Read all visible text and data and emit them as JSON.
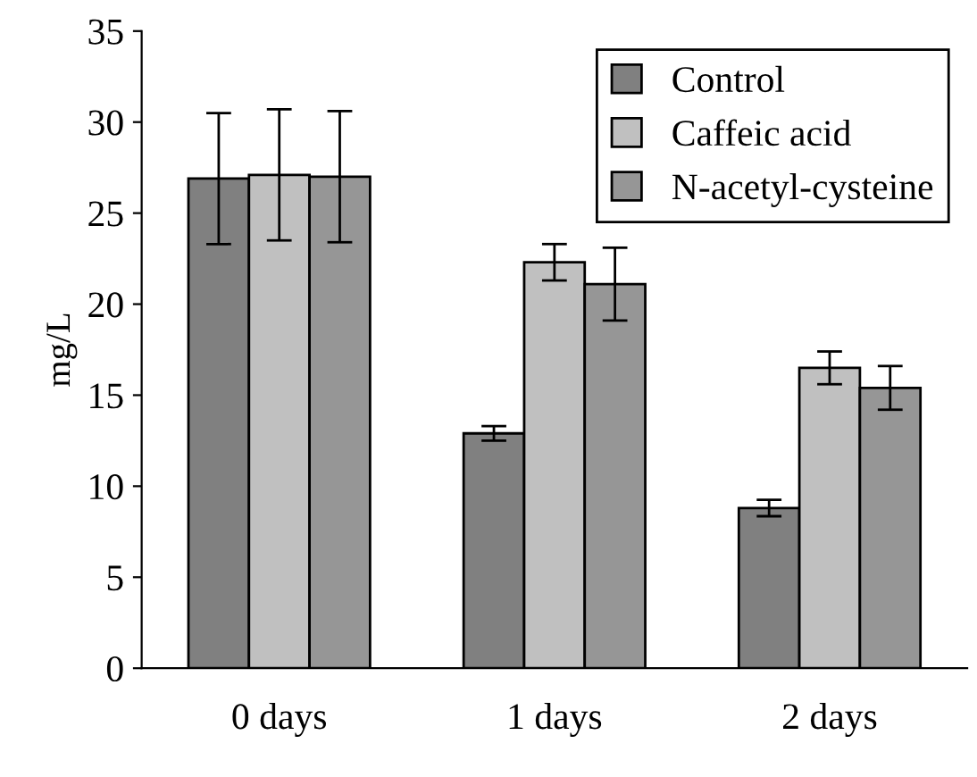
{
  "chart_data": {
    "type": "bar",
    "ylabel": "mg/L",
    "categories": [
      "0 days",
      "1 days",
      "2 days"
    ],
    "series": [
      {
        "name": "Control",
        "color": "#808080",
        "values": [
          26.9,
          12.9,
          8.8
        ],
        "errors": [
          3.6,
          0.4,
          0.45
        ]
      },
      {
        "name": "Caffeic acid",
        "color": "#c0c0c0",
        "values": [
          27.1,
          22.3,
          16.5
        ],
        "errors": [
          3.6,
          1.0,
          0.9
        ]
      },
      {
        "name": "N-acetyl-cysteine",
        "color": "#969696",
        "values": [
          27.0,
          21.1,
          15.4
        ],
        "errors": [
          3.6,
          2.0,
          1.2
        ]
      }
    ],
    "ylim": [
      0,
      35
    ],
    "yticks": [
      0,
      5,
      10,
      15,
      20,
      25,
      30,
      35
    ],
    "grid": false,
    "legend": "top right"
  }
}
